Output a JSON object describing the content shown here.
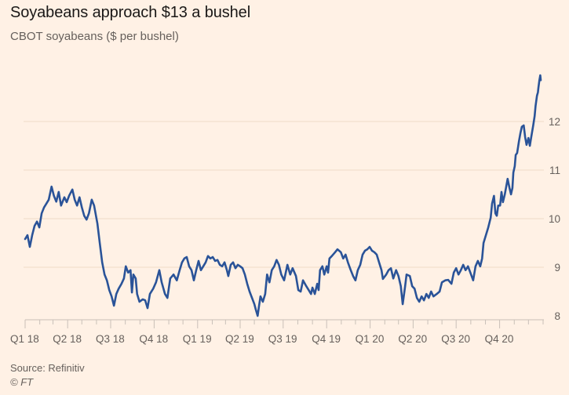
{
  "chart_data": {
    "type": "line",
    "title": "Soyabeans approach $13 a bushel",
    "subtitle": "CBOT soyabeans ($ per bushel)",
    "xlabel": "",
    "ylabel": "",
    "x_unit": "days since 2018-01-01",
    "xlim": [
      0,
      1096
    ],
    "ylim": [
      7.92,
      13.3
    ],
    "grid": true,
    "y_axis_side": "right",
    "yticks": [
      8,
      9,
      10,
      11,
      12
    ],
    "ytick_labels": [
      "8",
      "9",
      "10",
      "11",
      "12"
    ],
    "xticks_major": [
      0,
      90,
      181,
      273,
      365,
      455,
      546,
      638,
      730,
      821,
      912,
      1004
    ],
    "xtick_labels": [
      "Q1 18",
      "Q2 18",
      "Q3 18",
      "Q4 18",
      "Q1 19",
      "Q2 19",
      "Q3 19",
      "Q4 19",
      "Q1 20",
      "Q2 20",
      "Q3 20",
      "Q4 20"
    ],
    "xticks_minor": [
      31,
      59,
      120,
      151,
      212,
      243,
      304,
      334,
      396,
      424,
      485,
      516,
      577,
      608,
      669,
      699,
      761,
      790,
      852,
      882,
      943,
      974,
      1035,
      1065,
      1096
    ],
    "legend": null,
    "series": [
      {
        "name": "CBOT soyabeans",
        "color": "#2a5398",
        "points": [
          [
            0,
            9.58
          ],
          [
            5,
            9.66
          ],
          [
            10,
            9.42
          ],
          [
            15,
            9.66
          ],
          [
            20,
            9.85
          ],
          [
            25,
            9.94
          ],
          [
            30,
            9.82
          ],
          [
            35,
            10.11
          ],
          [
            40,
            10.23
          ],
          [
            45,
            10.31
          ],
          [
            50,
            10.39
          ],
          [
            56,
            10.66
          ],
          [
            61,
            10.47
          ],
          [
            66,
            10.35
          ],
          [
            71,
            10.55
          ],
          [
            76,
            10.27
          ],
          [
            83,
            10.44
          ],
          [
            88,
            10.34
          ],
          [
            93,
            10.47
          ],
          [
            100,
            10.6
          ],
          [
            105,
            10.39
          ],
          [
            110,
            10.27
          ],
          [
            115,
            10.44
          ],
          [
            120,
            10.23
          ],
          [
            125,
            10.06
          ],
          [
            130,
            9.98
          ],
          [
            135,
            10.11
          ],
          [
            141,
            10.39
          ],
          [
            146,
            10.27
          ],
          [
            153,
            9.9
          ],
          [
            158,
            9.5
          ],
          [
            163,
            9.1
          ],
          [
            168,
            8.85
          ],
          [
            173,
            8.73
          ],
          [
            178,
            8.53
          ],
          [
            183,
            8.4
          ],
          [
            188,
            8.21
          ],
          [
            193,
            8.45
          ],
          [
            198,
            8.56
          ],
          [
            204,
            8.66
          ],
          [
            209,
            8.77
          ],
          [
            213,
            9.02
          ],
          [
            218,
            8.89
          ],
          [
            223,
            8.94
          ],
          [
            226,
            8.48
          ],
          [
            229,
            8.85
          ],
          [
            234,
            8.77
          ],
          [
            237,
            8.45
          ],
          [
            242,
            8.29
          ],
          [
            249,
            8.34
          ],
          [
            254,
            8.32
          ],
          [
            259,
            8.16
          ],
          [
            264,
            8.45
          ],
          [
            271,
            8.56
          ],
          [
            277,
            8.69
          ],
          [
            284,
            8.94
          ],
          [
            289,
            8.69
          ],
          [
            296,
            8.45
          ],
          [
            301,
            8.37
          ],
          [
            307,
            8.77
          ],
          [
            314,
            8.85
          ],
          [
            321,
            8.73
          ],
          [
            327,
            8.94
          ],
          [
            332,
            9.1
          ],
          [
            337,
            9.18
          ],
          [
            342,
            9.21
          ],
          [
            347,
            9.02
          ],
          [
            352,
            8.94
          ],
          [
            357,
            8.73
          ],
          [
            362,
            8.94
          ],
          [
            367,
            9.13
          ],
          [
            372,
            8.94
          ],
          [
            377,
            9.02
          ],
          [
            382,
            9.1
          ],
          [
            387,
            9.23
          ],
          [
            392,
            9.18
          ],
          [
            397,
            9.21
          ],
          [
            402,
            9.13
          ],
          [
            407,
            9.15
          ],
          [
            412,
            9.05
          ],
          [
            417,
            9.02
          ],
          [
            422,
            9.1
          ],
          [
            427,
            8.94
          ],
          [
            430,
            8.82
          ],
          [
            435,
            9.05
          ],
          [
            440,
            9.1
          ],
          [
            445,
            8.98
          ],
          [
            450,
            9.05
          ],
          [
            455,
            9.02
          ],
          [
            460,
            8.98
          ],
          [
            465,
            8.85
          ],
          [
            470,
            8.66
          ],
          [
            475,
            8.5
          ],
          [
            480,
            8.37
          ],
          [
            485,
            8.24
          ],
          [
            488,
            8.13
          ],
          [
            492,
            8.0
          ],
          [
            495,
            8.21
          ],
          [
            498,
            8.4
          ],
          [
            503,
            8.29
          ],
          [
            508,
            8.45
          ],
          [
            512,
            8.85
          ],
          [
            517,
            8.69
          ],
          [
            522,
            8.94
          ],
          [
            527,
            9.02
          ],
          [
            532,
            9.15
          ],
          [
            537,
            9.05
          ],
          [
            542,
            8.85
          ],
          [
            548,
            8.73
          ],
          [
            555,
            9.05
          ],
          [
            561,
            8.85
          ],
          [
            566,
            8.98
          ],
          [
            573,
            8.82
          ],
          [
            578,
            8.53
          ],
          [
            583,
            8.5
          ],
          [
            588,
            8.73
          ],
          [
            595,
            8.61
          ],
          [
            600,
            8.53
          ],
          [
            605,
            8.45
          ],
          [
            608,
            8.58
          ],
          [
            613,
            8.45
          ],
          [
            618,
            8.66
          ],
          [
            621,
            8.53
          ],
          [
            624,
            8.94
          ],
          [
            629,
            9.02
          ],
          [
            633,
            8.85
          ],
          [
            638,
            9.02
          ],
          [
            641,
            8.89
          ],
          [
            644,
            9.18
          ],
          [
            649,
            9.23
          ],
          [
            656,
            9.31
          ],
          [
            661,
            9.37
          ],
          [
            668,
            9.31
          ],
          [
            673,
            9.18
          ],
          [
            678,
            9.26
          ],
          [
            683,
            9.1
          ],
          [
            689,
            8.94
          ],
          [
            694,
            8.82
          ],
          [
            699,
            8.73
          ],
          [
            704,
            8.94
          ],
          [
            709,
            9.05
          ],
          [
            714,
            9.26
          ],
          [
            719,
            9.34
          ],
          [
            724,
            9.37
          ],
          [
            729,
            9.42
          ],
          [
            734,
            9.34
          ],
          [
            739,
            9.31
          ],
          [
            744,
            9.26
          ],
          [
            749,
            9.1
          ],
          [
            754,
            8.94
          ],
          [
            757,
            8.76
          ],
          [
            764,
            8.85
          ],
          [
            769,
            8.94
          ],
          [
            774,
            8.98
          ],
          [
            779,
            8.77
          ],
          [
            785,
            8.94
          ],
          [
            790,
            8.82
          ],
          [
            795,
            8.61
          ],
          [
            799,
            8.24
          ],
          [
            804,
            8.61
          ],
          [
            807,
            8.85
          ],
          [
            814,
            8.82
          ],
          [
            819,
            8.61
          ],
          [
            824,
            8.56
          ],
          [
            829,
            8.37
          ],
          [
            834,
            8.29
          ],
          [
            839,
            8.4
          ],
          [
            844,
            8.32
          ],
          [
            849,
            8.45
          ],
          [
            854,
            8.37
          ],
          [
            859,
            8.5
          ],
          [
            864,
            8.4
          ],
          [
            871,
            8.45
          ],
          [
            877,
            8.5
          ],
          [
            882,
            8.69
          ],
          [
            889,
            8.73
          ],
          [
            895,
            8.74
          ],
          [
            902,
            8.66
          ],
          [
            907,
            8.89
          ],
          [
            912,
            8.98
          ],
          [
            917,
            8.85
          ],
          [
            922,
            8.94
          ],
          [
            927,
            9.05
          ],
          [
            932,
            8.94
          ],
          [
            937,
            9.02
          ],
          [
            942,
            8.89
          ],
          [
            948,
            8.73
          ],
          [
            953,
            9.02
          ],
          [
            958,
            9.13
          ],
          [
            963,
            9.02
          ],
          [
            967,
            9.18
          ],
          [
            970,
            9.5
          ],
          [
            975,
            9.66
          ],
          [
            980,
            9.82
          ],
          [
            985,
            10.02
          ],
          [
            988,
            10.31
          ],
          [
            992,
            10.47
          ],
          [
            995,
            10.11
          ],
          [
            998,
            10.06
          ],
          [
            1001,
            10.27
          ],
          [
            1005,
            10.27
          ],
          [
            1008,
            10.55
          ],
          [
            1011,
            10.34
          ],
          [
            1015,
            10.5
          ],
          [
            1018,
            10.66
          ],
          [
            1021,
            10.82
          ],
          [
            1025,
            10.63
          ],
          [
            1028,
            10.5
          ],
          [
            1031,
            10.63
          ],
          [
            1033,
            10.95
          ],
          [
            1036,
            11.08
          ],
          [
            1038,
            11.31
          ],
          [
            1041,
            11.35
          ],
          [
            1045,
            11.6
          ],
          [
            1048,
            11.76
          ],
          [
            1051,
            11.89
          ],
          [
            1055,
            11.92
          ],
          [
            1058,
            11.68
          ],
          [
            1061,
            11.52
          ],
          [
            1065,
            11.66
          ],
          [
            1068,
            11.5
          ],
          [
            1071,
            11.68
          ],
          [
            1075,
            11.92
          ],
          [
            1078,
            12.11
          ],
          [
            1080,
            12.32
          ],
          [
            1083,
            12.53
          ],
          [
            1085,
            12.6
          ],
          [
            1086,
            12.69
          ],
          [
            1088,
            12.84
          ],
          [
            1090,
            12.95
          ],
          [
            1091,
            12.85
          ]
        ]
      }
    ],
    "source": "Source: Refinitiv",
    "copyright": "© FT"
  },
  "colors": {
    "background": "#fff1e5",
    "line": "#2a5398",
    "grid": "#f2dfce",
    "axis": "#c9c0b8",
    "text_muted": "#66605c",
    "title": "#1a1817"
  }
}
